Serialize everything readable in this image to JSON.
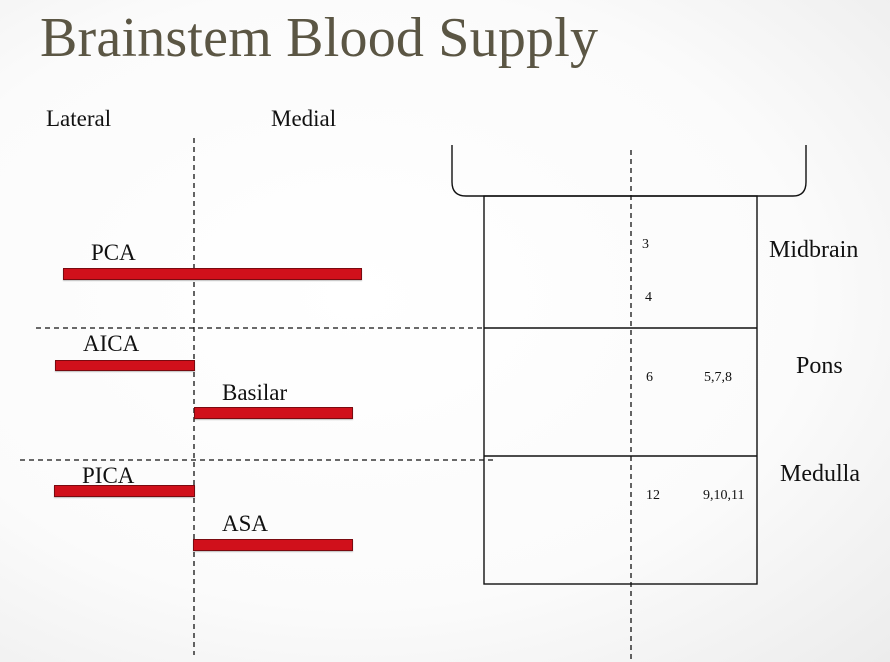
{
  "title": "Brainstem Blood Supply",
  "axis": {
    "lateral": "Lateral",
    "medial": "Medial"
  },
  "arteries": {
    "pca": "PCA",
    "aica": "AICA",
    "basilar": "Basilar",
    "pica": "PICA",
    "asa": "ASA"
  },
  "regions": {
    "midbrain": "Midbrain",
    "pons": "Pons",
    "medulla": "Medulla"
  },
  "nuclei": {
    "midbrain_medial_upper": "3",
    "midbrain_medial_lower": "4",
    "pons_medial": "6",
    "pons_lateral": "5,7,8",
    "medulla_medial": "12",
    "medulla_lateral": "9,10,11"
  },
  "colors": {
    "artery_bar": "#d0101b",
    "title": "#5b5644"
  }
}
